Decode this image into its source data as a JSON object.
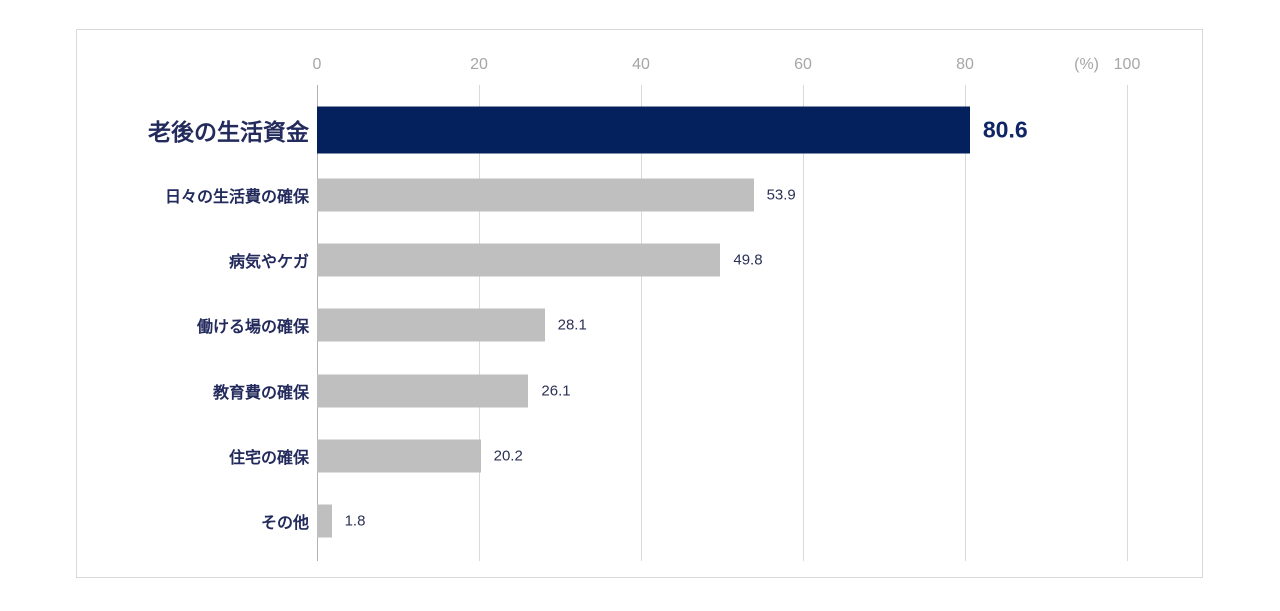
{
  "chart_data": {
    "type": "bar",
    "orientation": "horizontal",
    "title": "",
    "categories": [
      "老後の生活資金",
      "日々の生活費の確保",
      "病気やケガ",
      "働ける場の確保",
      "教育費の確保",
      "住宅の確保",
      "その他"
    ],
    "values": [
      80.6,
      53.9,
      49.8,
      28.1,
      26.1,
      20.2,
      1.8
    ],
    "value_labels": [
      "80.6",
      "53.9",
      "49.8",
      "28.1",
      "26.1",
      "20.2",
      "1.8"
    ],
    "highlight_index": 0,
    "x_ticks": [
      0,
      20,
      40,
      60,
      80,
      100
    ],
    "x_tick_labels": [
      "0",
      "20",
      "40",
      "60",
      "80",
      "100"
    ],
    "unit_label": "(%)",
    "xlim": [
      0,
      100
    ],
    "grid": true,
    "legend": "none",
    "colors": {
      "highlight_bar": "#04215e",
      "default_bar": "#bfbfbf",
      "category_text": "#232a5c",
      "value_text": "#2b3156",
      "highlight_value_text": "#0f2566",
      "tick_text": "#a6a6a6",
      "gridline": "#d9d9d9",
      "axis_line": "#b3b3b3",
      "frame_border": "#d9d9d9",
      "background": "#ffffff"
    }
  }
}
